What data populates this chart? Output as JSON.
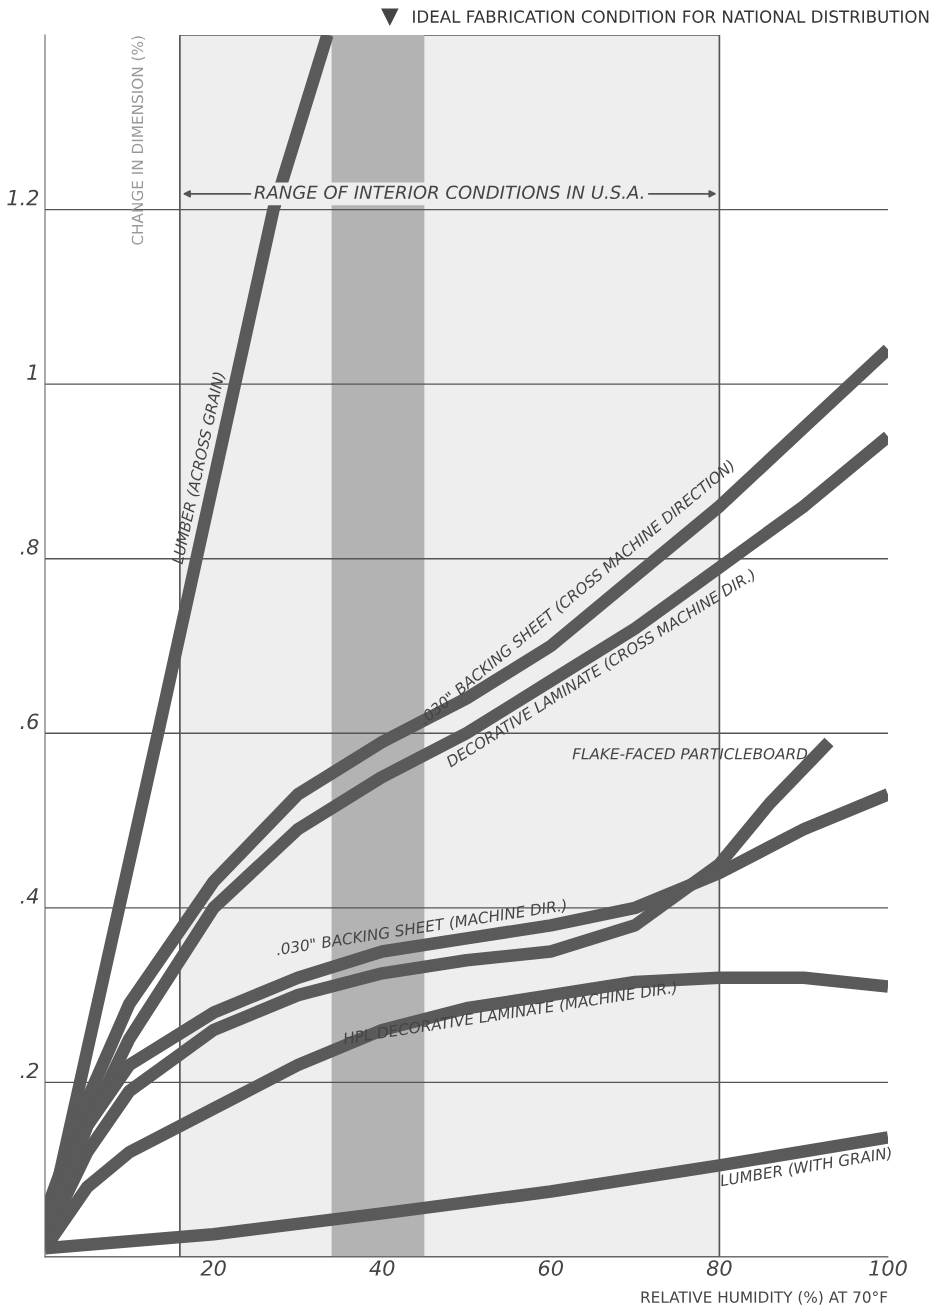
{
  "chart_data": {
    "type": "line",
    "xlabel": "RELATIVE HUMIDITY (%) AT 70°F",
    "ylabel": "CHANGE IN DIMENSION (%)",
    "xlim": [
      0,
      100
    ],
    "ylim": [
      0,
      1.4
    ],
    "xticks": [
      20,
      40,
      60,
      80,
      100
    ],
    "yticks": [
      {
        "value": 0,
        "label": null
      },
      {
        "value": 0.2,
        "label": ".2"
      },
      {
        "value": 0.4,
        "label": ".4"
      },
      {
        "value": 0.6,
        "label": ".6"
      },
      {
        "value": 0.8,
        "label": ".8"
      },
      1,
      1.2
    ],
    "grid": "y",
    "legend": "top right",
    "line_style": "solid",
    "marker": "none",
    "bands": [
      {
        "axis": "x",
        "from": 16,
        "to": 80,
        "label": "RANGE OF INTERIOR CONDITIONS IN U.S.A.",
        "color": "#eeeeee"
      },
      {
        "axis": "x",
        "from": 34,
        "to": 45,
        "label": "IDEAL FABRICATION CONDITION FOR NATIONAL DISTRIBUTION",
        "color": "#b3b3b3"
      }
    ],
    "series": [
      {
        "name": "LUMBER (ACROSS GRAIN)",
        "color": "#5a5a5a",
        "x": [
          0,
          13.4,
          27.1,
          33.5
        ],
        "values": [
          0.02,
          0.6,
          1.2,
          1.4
        ]
      },
      {
        "name": ".030\" BACKING SHEET (CROSS MACHINE DIRECTION)",
        "color": "#5a5a5a",
        "x": [
          0,
          5,
          10,
          20,
          30,
          40,
          50,
          60,
          70,
          80,
          90,
          100
        ],
        "values": [
          0.05,
          0.18,
          0.29,
          0.43,
          0.53,
          0.59,
          0.64,
          0.7,
          0.78,
          0.86,
          0.95,
          1.04
        ]
      },
      {
        "name": "DECORATIVE LAMINATE (CROSS MACHINE DIR.)",
        "color": "#5a5a5a",
        "x": [
          0,
          5,
          10,
          20,
          30,
          40,
          50,
          60,
          70,
          80,
          90,
          100
        ],
        "values": [
          0.04,
          0.15,
          0.25,
          0.4,
          0.49,
          0.55,
          0.6,
          0.66,
          0.72,
          0.79,
          0.86,
          0.94
        ]
      },
      {
        "name": "FLAKE-FACED PARTICLEBOARD",
        "color": "#5a5a5a",
        "x": [
          0,
          5,
          10,
          20,
          30,
          40,
          50,
          60,
          70,
          80,
          86,
          93
        ],
        "values": [
          0.02,
          0.12,
          0.19,
          0.26,
          0.3,
          0.325,
          0.34,
          0.35,
          0.38,
          0.45,
          0.52,
          0.59
        ]
      },
      {
        "name": ".030\" BACKING SHEET (MACHINE DIR.)",
        "color": "#5a5a5a",
        "x": [
          0,
          5,
          10,
          20,
          30,
          40,
          50,
          60,
          70,
          80,
          90,
          100
        ],
        "values": [
          0.02,
          0.15,
          0.22,
          0.28,
          0.32,
          0.35,
          0.365,
          0.38,
          0.4,
          0.44,
          0.49,
          0.53
        ]
      },
      {
        "name": "HPL DECORATIVE LAMINATE (MACHINE DIR.)",
        "color": "#5a5a5a",
        "x": [
          0,
          5,
          10,
          20,
          30,
          40,
          50,
          60,
          70,
          80,
          90,
          100
        ],
        "values": [
          0.01,
          0.08,
          0.12,
          0.17,
          0.22,
          0.26,
          0.285,
          0.3,
          0.315,
          0.32,
          0.32,
          0.31
        ]
      },
      {
        "name": "LUMBER (WITH GRAIN)",
        "color": "#5a5a5a",
        "x": [
          0,
          20,
          40,
          60,
          80,
          100
        ],
        "values": [
          0.01,
          0.026,
          0.05,
          0.075,
          0.105,
          0.137
        ]
      }
    ]
  }
}
